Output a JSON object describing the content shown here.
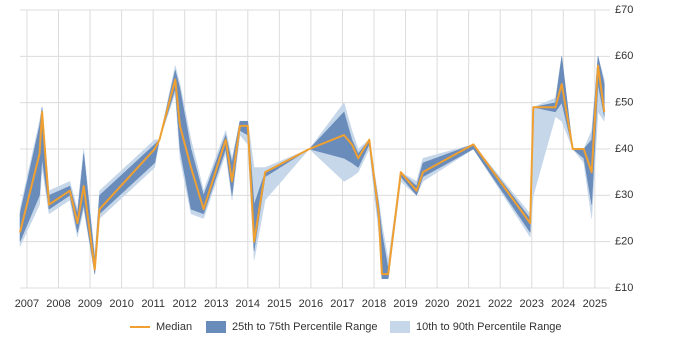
{
  "chart_data": {
    "type": "line",
    "x": [
      2006.78,
      2007.4,
      2007.48,
      2007.7,
      2008.36,
      2008.6,
      2008.8,
      2009.15,
      2009.3,
      2011.05,
      2011.2,
      2011.7,
      2011.85,
      2012.2,
      2012.6,
      2013.3,
      2013.5,
      2013.75,
      2014.0,
      2014.2,
      2014.55,
      2015.95,
      2017.05,
      2017.3,
      2017.5,
      2017.85,
      2018.15,
      2018.25,
      2018.45,
      2018.85,
      2019.35,
      2019.55,
      2021.15,
      2022.95,
      2023.05,
      2023.75,
      2023.95,
      2024.3,
      2024.65,
      2024.9,
      2025.1,
      2025.3
    ],
    "series": [
      {
        "name": "Median",
        "color": "#f0a030",
        "values": [
          22,
          39,
          48,
          28,
          31,
          24,
          32,
          14,
          27,
          40,
          42,
          55,
          45,
          36,
          27,
          42,
          33,
          45,
          45,
          20,
          35,
          40,
          43,
          41,
          38,
          42,
          26,
          13,
          13,
          35,
          31,
          35,
          41,
          24,
          49,
          49,
          54,
          40,
          40,
          35,
          58,
          48
        ]
      },
      {
        "name": "25th to 75th Percentile Range",
        "color": "#6a8cbb",
        "low": [
          20,
          30,
          38,
          27,
          30,
          22,
          28,
          13,
          26,
          37,
          42,
          53,
          40,
          27,
          26,
          40,
          30,
          44,
          43,
          18,
          34,
          40,
          38,
          37,
          36,
          41,
          24,
          12,
          12,
          34,
          30,
          34,
          40,
          22,
          49,
          48,
          50,
          40,
          38,
          28,
          54,
          47
        ],
        "high": [
          26,
          45,
          49,
          30,
          32,
          26,
          39,
          16,
          30,
          41,
          42,
          57,
          53,
          40,
          30,
          43,
          37,
          46,
          46,
          28,
          35,
          40,
          48,
          42,
          39,
          42,
          28,
          22,
          14,
          35,
          32,
          37,
          41,
          25,
          49,
          50,
          60,
          40,
          40,
          42,
          60,
          54
        ]
      },
      {
        "name": "10th to 90th Percentile Range",
        "color": "#c6d7ea",
        "low": [
          19,
          28,
          36,
          26,
          29,
          21,
          27,
          13,
          25,
          36,
          42,
          52,
          38,
          26,
          25,
          39,
          29,
          43,
          41,
          16,
          29,
          40,
          33,
          34,
          35,
          40,
          22,
          12,
          12,
          33,
          30,
          33,
          40,
          21,
          30,
          47,
          46,
          40,
          37,
          25,
          48,
          46
        ],
        "high": [
          27,
          46,
          49,
          31,
          33,
          27,
          40,
          17,
          31,
          42,
          42,
          58,
          54,
          42,
          31,
          44,
          38,
          46,
          46,
          36,
          36,
          40,
          50,
          44,
          40,
          42,
          29,
          24,
          16,
          35,
          33,
          38,
          41,
          26,
          49,
          51,
          60,
          40,
          40,
          44,
          60,
          55
        ]
      }
    ],
    "xlim": [
      2006.78,
      2025.48
    ],
    "xticks": [
      2007,
      2008,
      2009,
      2010,
      2011,
      2012,
      2013,
      2014,
      2015,
      2016,
      2017,
      2018,
      2019,
      2020,
      2021,
      2022,
      2023,
      2024,
      2025
    ],
    "ylim": [
      10,
      70
    ],
    "yticks": [
      {
        "value": 10,
        "label": "£10"
      },
      {
        "value": 20,
        "label": "£20"
      },
      {
        "value": 30,
        "label": "£30"
      },
      {
        "value": 40,
        "label": "£40"
      },
      {
        "value": 50,
        "label": "£50"
      },
      {
        "value": 60,
        "label": "£60"
      },
      {
        "value": 70,
        "label": "£70"
      }
    ],
    "grid": true,
    "legend": "bottom"
  }
}
